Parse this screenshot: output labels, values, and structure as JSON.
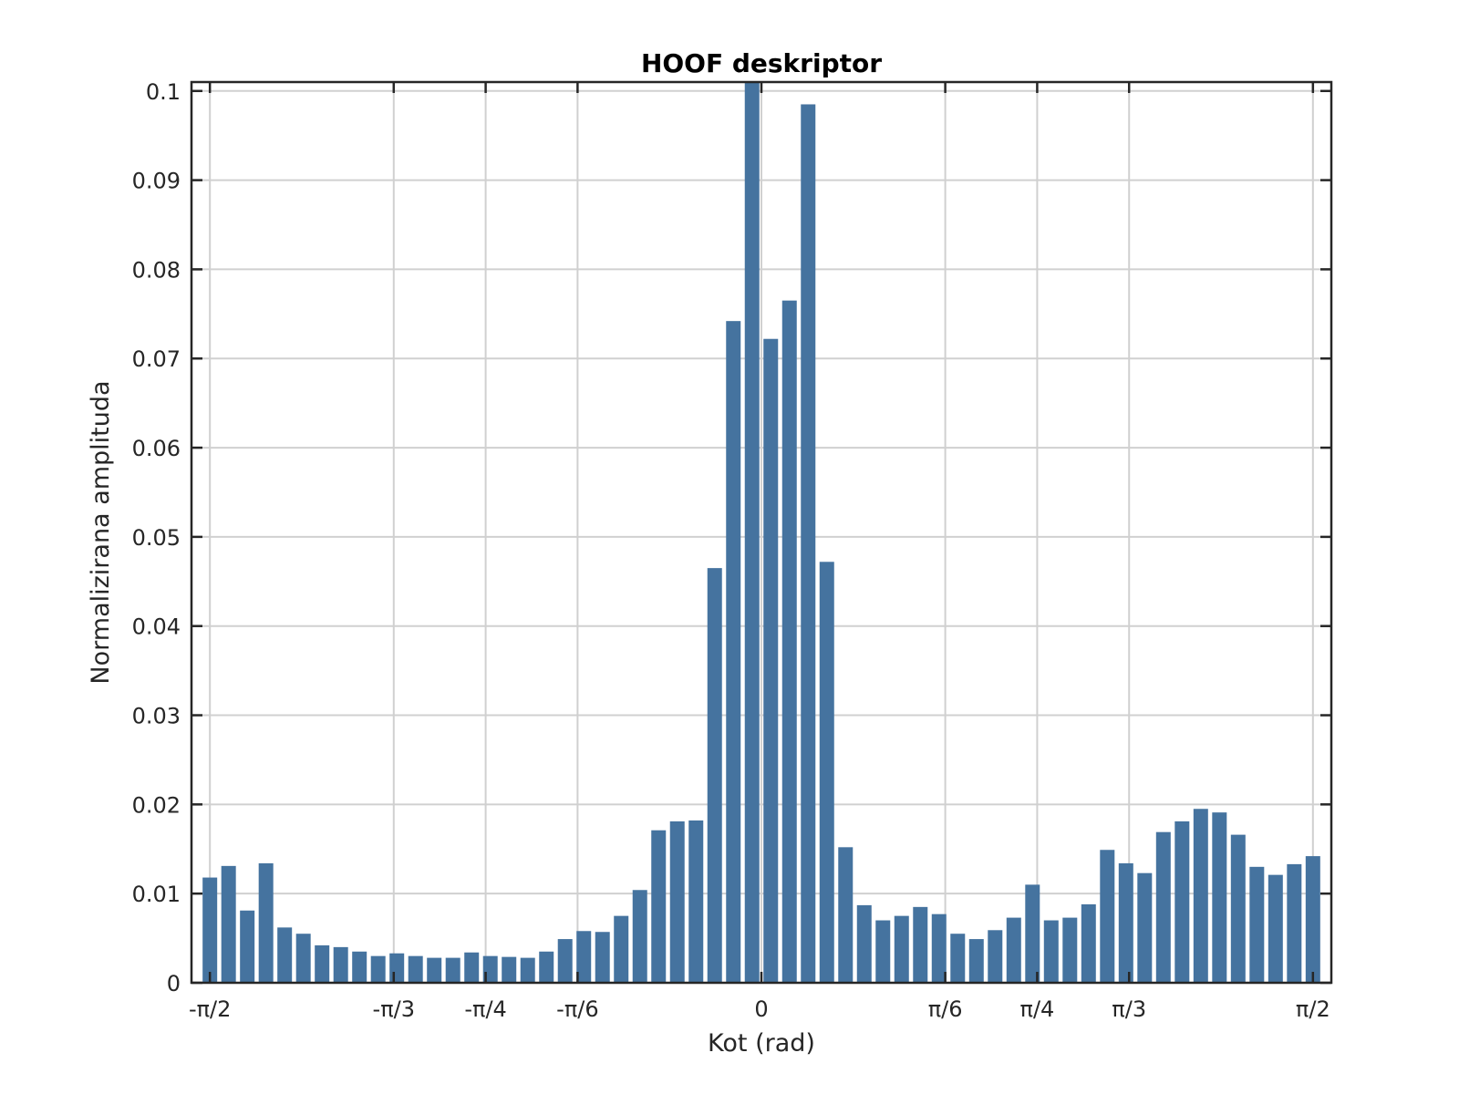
{
  "chart_data": {
    "type": "bar",
    "title": "HOOF deskriptor",
    "xlabel": "Kot (rad)",
    "ylabel": "Normalizirana amplituda",
    "xlim": [
      -1.6232,
      1.6232
    ],
    "ylim": [
      0,
      0.101
    ],
    "x_ticks": [
      {
        "value": -1.5708,
        "label": "-π/2"
      },
      {
        "value": -1.0472,
        "label": "-π/3"
      },
      {
        "value": -0.7854,
        "label": "-π/4"
      },
      {
        "value": -0.5236,
        "label": "-π/6"
      },
      {
        "value": 0,
        "label": "0"
      },
      {
        "value": 0.5236,
        "label": "π/6"
      },
      {
        "value": 0.7854,
        "label": "π/4"
      },
      {
        "value": 1.0472,
        "label": "π/3"
      },
      {
        "value": 1.5708,
        "label": "π/2"
      }
    ],
    "y_ticks": [
      {
        "value": 0,
        "label": "0"
      },
      {
        "value": 0.01,
        "label": "0.01"
      },
      {
        "value": 0.02,
        "label": "0.02"
      },
      {
        "value": 0.03,
        "label": "0.03"
      },
      {
        "value": 0.04,
        "label": "0.04"
      },
      {
        "value": 0.05,
        "label": "0.05"
      },
      {
        "value": 0.06,
        "label": "0.06"
      },
      {
        "value": 0.07,
        "label": "0.07"
      },
      {
        "value": 0.08,
        "label": "0.08"
      },
      {
        "value": 0.09,
        "label": "0.09"
      },
      {
        "value": 0.1,
        "label": "0.1"
      }
    ],
    "x_start": -1.5708,
    "x_end": 1.5708,
    "grid": true,
    "bar_color": "#45739f",
    "values": [
      0.0118,
      0.0131,
      0.0081,
      0.0134,
      0.0062,
      0.0055,
      0.0042,
      0.004,
      0.0035,
      0.003,
      0.0033,
      0.003,
      0.0028,
      0.0028,
      0.0034,
      0.003,
      0.0029,
      0.0028,
      0.0035,
      0.0049,
      0.0058,
      0.0057,
      0.0075,
      0.0104,
      0.0171,
      0.0181,
      0.0182,
      0.0465,
      0.0742,
      0.101,
      0.0722,
      0.0765,
      0.0985,
      0.0472,
      0.0152,
      0.0087,
      0.007,
      0.0075,
      0.0085,
      0.0077,
      0.0055,
      0.0049,
      0.0059,
      0.0073,
      0.011,
      0.007,
      0.0073,
      0.0088,
      0.0149,
      0.0134,
      0.0123,
      0.0169,
      0.0181,
      0.0195,
      0.0191,
      0.0166,
      0.013,
      0.0121,
      0.0133,
      0.0142
    ]
  }
}
